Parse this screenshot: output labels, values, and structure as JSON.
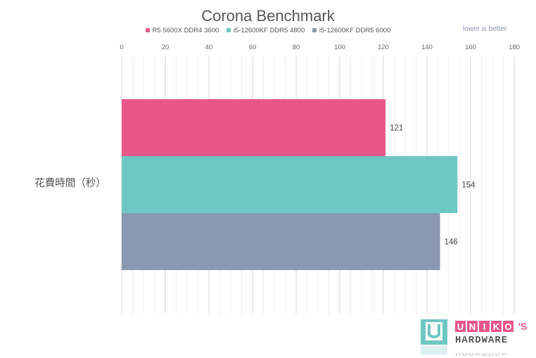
{
  "chart_data": {
    "type": "bar",
    "orientation": "horizontal",
    "title": "Corona Benchmark",
    "categories": [
      "花費時間（秒）"
    ],
    "series": [
      {
        "name": "R5 5600X DDR4 3600",
        "color": "#e9578a",
        "values": [
          121
        ]
      },
      {
        "name": "i5-12600KF DDR5 4800",
        "color": "#6ec7c3",
        "values": [
          154
        ]
      },
      {
        "name": "i5-12600KF DDR5 6000",
        "color": "#8a99b0",
        "values": [
          146
        ]
      }
    ],
    "xlim": [
      0,
      180
    ],
    "xticks": [
      "0",
      "20",
      "40",
      "60",
      "80",
      "100",
      "120",
      "140",
      "160",
      "180"
    ],
    "grid": true,
    "legend_position": "top",
    "note": "lower is better"
  },
  "watermark": {
    "line1": "UNIKO'S",
    "line2": "HARDWARE"
  }
}
